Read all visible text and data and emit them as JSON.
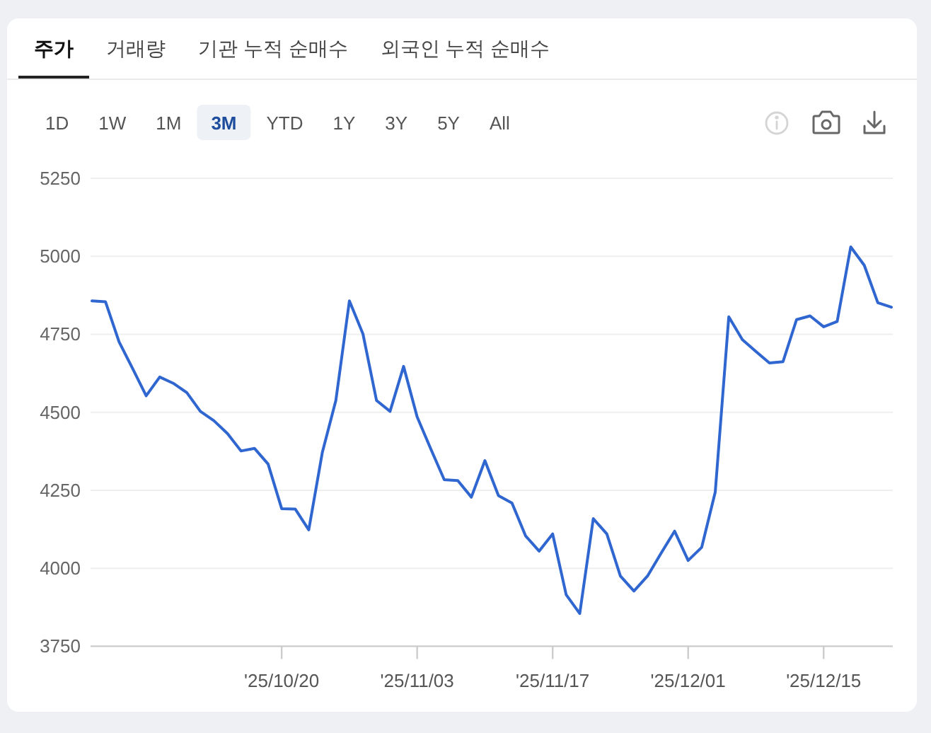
{
  "chart_data": {
    "type": "line",
    "annotations": [
      "주가",
      "거래량",
      "기관 누적 순매수",
      "외국인 누적 순매수",
      "1D",
      "1W",
      "1M",
      "3M",
      "YTD",
      "1Y",
      "3Y",
      "5Y",
      "All"
    ],
    "categories": [
      null,
      null,
      null,
      null,
      null,
      null,
      null,
      null,
      null,
      null,
      null,
      null,
      null,
      null,
      "'25/10/20",
      null,
      null,
      null,
      null,
      null,
      null,
      null,
      null,
      null,
      "'25/11/03",
      null,
      null,
      null,
      null,
      null,
      null,
      null,
      null,
      null,
      "'25/11/17",
      null,
      null,
      null,
      null,
      null,
      null,
      null,
      null,
      null,
      "'25/12/01",
      null,
      null,
      null,
      null,
      null,
      null,
      null,
      null,
      null,
      "'25/12/15",
      null,
      null,
      null,
      null,
      null
    ],
    "values": [
      4857,
      4854,
      4726,
      4640,
      4553,
      4613,
      4593,
      4563,
      4503,
      4473,
      4432,
      4376,
      4384,
      4334,
      4191,
      4190,
      4123,
      4371,
      4538,
      4857,
      4751,
      4538,
      4503,
      4647,
      4485,
      4383,
      4284,
      4281,
      4228,
      4345,
      4233,
      4209,
      4104,
      4055,
      4110,
      3915,
      3855,
      4159,
      4110,
      3975,
      3927,
      3975,
      4048,
      4119,
      4025,
      4067,
      4244,
      4806,
      4733,
      4695,
      4658,
      4662,
      4797,
      4809,
      4774,
      4791,
      5030,
      4971,
      4851,
      4837
    ],
    "color": "#2f66cf",
    "ylim": [
      3750,
      5250
    ],
    "yticks": [
      3750,
      4000,
      4250,
      4500,
      4750,
      5000,
      5250
    ],
    "grid": "y"
  }
}
